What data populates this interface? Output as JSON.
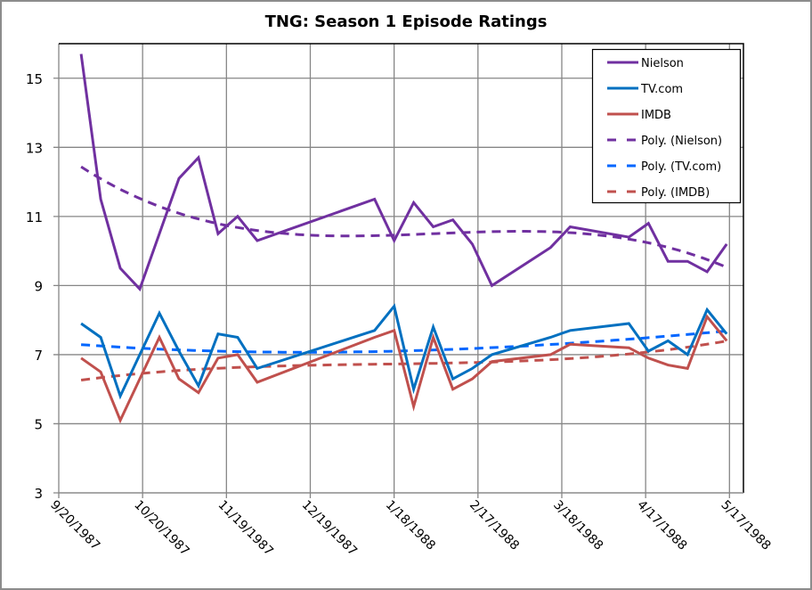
{
  "chart_data": {
    "type": "line",
    "title": "TNG: Season 1 Episode Ratings",
    "xlabel": "",
    "ylabel": "",
    "xlim": [
      "1987-09-20",
      "1988-05-22"
    ],
    "ylim": [
      3,
      16
    ],
    "y_ticks": [
      3,
      5,
      7,
      9,
      11,
      13,
      15
    ],
    "x_ticks": [
      "1987-09-20",
      "1987-10-20",
      "1987-11-19",
      "1987-12-19",
      "1988-01-18",
      "1988-02-17",
      "1988-03-18",
      "1988-04-17",
      "1988-05-17"
    ],
    "x_tick_labels": [
      "9/20/1987",
      "10/20/1987",
      "11/19/1987",
      "12/19/1987",
      "1/18/1988",
      "2/17/1988",
      "3/18/1988",
      "4/17/1988",
      "5/17/1988"
    ],
    "grid": true,
    "legend_position": "top-right",
    "x": [
      "1987-09-28",
      "1987-10-05",
      "1987-10-12",
      "1987-10-19",
      "1987-10-26",
      "1987-11-02",
      "1987-11-09",
      "1987-11-16",
      "1987-11-23",
      "1987-11-30",
      "1988-01-11",
      "1988-01-18",
      "1988-01-25",
      "1988-02-01",
      "1988-02-08",
      "1988-02-15",
      "1988-02-22",
      "1988-03-14",
      "1988-03-21",
      "1988-04-11",
      "1988-04-18",
      "1988-04-25",
      "1988-05-02",
      "1988-05-09",
      "1988-05-16"
    ],
    "series": [
      {
        "name": "Nielson",
        "color": "#7030A0",
        "values": [
          15.7,
          11.5,
          9.5,
          8.9,
          10.5,
          12.1,
          12.7,
          10.5,
          11.0,
          10.3,
          11.5,
          10.3,
          11.4,
          10.7,
          10.9,
          10.2,
          9.0,
          10.1,
          10.7,
          10.4,
          10.8,
          9.7,
          9.7,
          9.4,
          10.2
        ]
      },
      {
        "name": "TV.com",
        "color": "#0070C0",
        "values": [
          7.9,
          7.5,
          5.8,
          7.0,
          8.2,
          7.1,
          6.1,
          7.6,
          7.5,
          6.6,
          7.7,
          8.4,
          6.0,
          7.8,
          6.3,
          6.6,
          7.0,
          7.5,
          7.7,
          7.9,
          7.1,
          7.4,
          7.0,
          8.3,
          7.6
        ]
      },
      {
        "name": "IMDB",
        "color": "#C0504D",
        "values": [
          6.9,
          6.5,
          5.1,
          6.3,
          7.5,
          6.3,
          5.9,
          6.9,
          7.0,
          6.2,
          7.5,
          7.7,
          5.5,
          7.5,
          6.0,
          6.3,
          6.8,
          7.0,
          7.3,
          7.2,
          6.9,
          6.7,
          6.6,
          8.1,
          7.4
        ]
      }
    ],
    "trendlines": [
      {
        "name": "Poly. (Nielson)",
        "of": "Nielson",
        "type": "polynomial",
        "order": 3,
        "color": "#7030A0",
        "dash": "dashed"
      },
      {
        "name": "Poly. (TV.com)",
        "of": "TV.com",
        "type": "polynomial",
        "order": 3,
        "color": "#0066FF",
        "dash": "dashed"
      },
      {
        "name": "Poly. (IMDB)",
        "of": "IMDB",
        "type": "polynomial",
        "order": 3,
        "color": "#C0504D",
        "dash": "dashed"
      }
    ]
  }
}
